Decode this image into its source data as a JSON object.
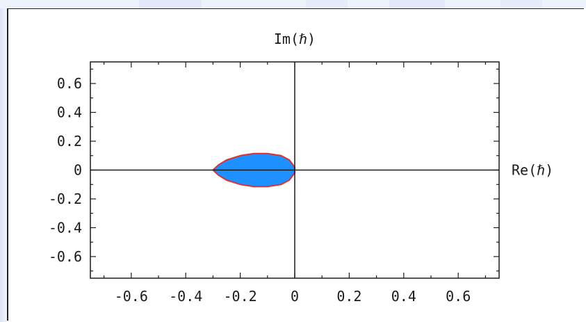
{
  "chart_data": {
    "type": "area",
    "title": "",
    "xlabel": "Re(ℏ)",
    "ylabel": "Im(ℏ)",
    "xlim": [
      -0.75,
      0.75
    ],
    "ylim": [
      -0.75,
      0.75
    ],
    "x_ticks": [
      "-0.6",
      "-0.4",
      "-0.2",
      "0",
      "0.2",
      "0.4",
      "0.6"
    ],
    "x_tick_values": [
      -0.6,
      -0.4,
      -0.2,
      0,
      0.2,
      0.4,
      0.6
    ],
    "y_ticks": [
      "0.6",
      "0.4",
      "0.2",
      "0",
      "-0.2",
      "-0.4",
      "-0.6"
    ],
    "y_tick_values": [
      0.6,
      0.4,
      0.2,
      0,
      -0.2,
      -0.4,
      -0.6
    ],
    "grid": false,
    "series": [
      {
        "fill_color": "#1e90ff",
        "edge_color": "#e03030",
        "x": [
          -0.3,
          -0.28,
          -0.25,
          -0.2,
          -0.15,
          -0.1,
          -0.05,
          -0.02,
          0,
          0,
          -0.02,
          -0.05,
          -0.1,
          -0.15,
          -0.2,
          -0.25,
          -0.28,
          -0.3
        ],
        "y": [
          0,
          0.035,
          0.07,
          0.1,
          0.115,
          0.115,
          0.1,
          0.07,
          0.02,
          -0.02,
          -0.07,
          -0.1,
          -0.115,
          -0.115,
          -0.1,
          -0.07,
          -0.035,
          0
        ]
      }
    ]
  },
  "colors": {
    "fill": "#1e90ff",
    "edge": "#e03030",
    "axes": "#1a1a1a",
    "band": "#eef2fb"
  }
}
